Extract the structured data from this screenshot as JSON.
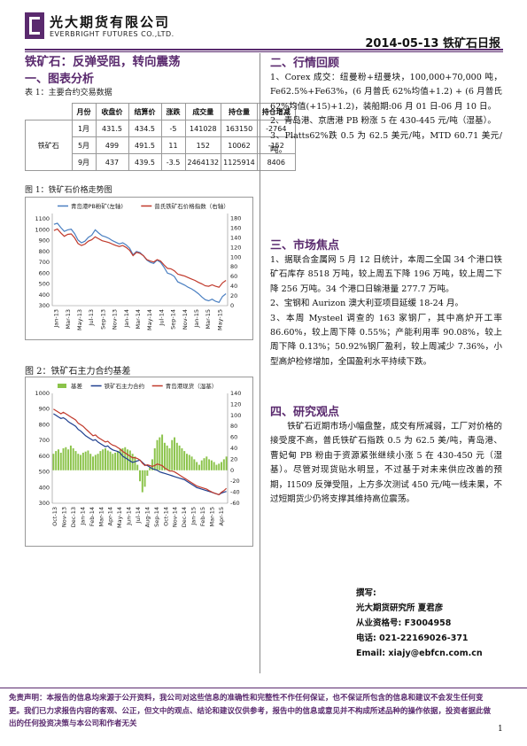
{
  "header": {
    "company_cn": "光大期货有限公司",
    "company_en": "EVERBRIGHT FUTURES CO.,LTD.",
    "report_title": "2014-05-13 铁矿石日报"
  },
  "headline": "铁矿石：反弹受阻，转向震荡",
  "left": {
    "section1_title": "一、图表分析",
    "table1_caption": "表 1：主要合约交易数据",
    "table": {
      "headers": [
        "月份",
        "收盘价",
        "结算价",
        "涨跌",
        "成交量",
        "持仓量",
        "持仓增减"
      ],
      "product": "铁矿石",
      "rows": [
        [
          "1月",
          "431.5",
          "434.5",
          "-5",
          "141028",
          "163150",
          "-2764"
        ],
        [
          "5月",
          "499",
          "491.5",
          "11",
          "152",
          "10062",
          "-152"
        ],
        [
          "9月",
          "437",
          "439.5",
          "-3.5",
          "2464132",
          "1125914",
          "8406"
        ]
      ]
    },
    "fig1_caption": "图 1：铁矿石价格走势图",
    "fig2_caption": "图 2：铁矿石主力合约基差"
  },
  "chart_data": [
    {
      "type": "line",
      "title": "",
      "series": [
        {
          "name": "青岛港PB粉矿(左轴)",
          "axis": "left",
          "color": "#4a7fc1",
          "values": [
            1050,
            1060,
            1020,
            985,
            1000,
            1005,
            965,
            905,
            880,
            895,
            930,
            950,
            1000,
            970,
            945,
            935,
            920,
            900,
            885,
            870,
            880,
            860,
            830,
            770,
            800,
            790,
            760,
            720,
            700,
            690,
            720,
            700,
            655,
            600,
            590,
            570,
            520,
            505,
            490,
            470,
            455,
            435,
            410,
            380,
            355,
            345,
            360,
            340,
            330,
            385,
            410
          ]
        },
        {
          "name": "普氏铁矿石价格指数（右轴）",
          "axis": "right",
          "color": "#c0392b",
          "values": [
            155,
            158,
            150,
            143,
            147,
            148,
            140,
            128,
            124,
            127,
            133,
            136,
            142,
            138,
            134,
            132,
            130,
            127,
            124,
            122,
            124,
            120,
            114,
            103,
            110,
            108,
            103,
            95,
            92,
            90,
            95,
            92,
            84,
            77,
            76,
            72,
            65,
            63,
            61,
            58,
            55,
            52,
            48,
            45,
            41,
            40,
            43,
            40,
            38,
            47,
            52
          ]
        }
      ],
      "x_labels": [
        "Jan-13",
        "Mar-13",
        "May-13",
        "Jul-13",
        "Sep-13",
        "Nov-13",
        "Jan-14",
        "Mar-14",
        "May-14",
        "Jul-14",
        "Sep-14",
        "Nov-14",
        "Jan-15",
        "Mar-15",
        "May-15"
      ],
      "yleft_ticks": [
        300,
        400,
        500,
        600,
        700,
        800,
        900,
        1000,
        1100
      ],
      "yright_ticks": [
        0,
        20,
        40,
        60,
        80,
        100,
        120,
        140,
        160,
        180
      ],
      "yleft_range": [
        300,
        1150
      ],
      "yright_range": [
        0,
        190
      ]
    },
    {
      "type": "bar+line",
      "title": "",
      "series": [
        {
          "name": "基差",
          "kind": "bar",
          "axis": "right",
          "color": "#8bc34a",
          "values": [
            30,
            35,
            38,
            32,
            40,
            42,
            38,
            45,
            40,
            35,
            30,
            28,
            32,
            34,
            36,
            30,
            25,
            28,
            30,
            35,
            38,
            40,
            36,
            34,
            30,
            32,
            35,
            38,
            40,
            42,
            38,
            36,
            30,
            25,
            10,
            -20,
            -40,
            -30,
            -10,
            5,
            20,
            40,
            55,
            60,
            65,
            50,
            45,
            40,
            55,
            60,
            50,
            45,
            40,
            35,
            30,
            28,
            25,
            20,
            15,
            10,
            18,
            22,
            25,
            20,
            18,
            15,
            10,
            12,
            15,
            20,
            25
          ]
        },
        {
          "name": "铁矿石主力合约",
          "kind": "line",
          "axis": "left",
          "color": "#1f3f8f",
          "values": [
            870,
            860,
            850,
            840,
            845,
            835,
            820,
            810,
            800,
            790,
            770,
            760,
            745,
            730,
            720,
            710,
            700,
            705,
            690,
            680,
            670,
            660,
            665,
            650,
            640,
            635,
            630,
            620,
            600,
            590,
            580,
            570,
            560,
            565,
            570,
            575,
            560,
            545,
            540,
            530,
            520,
            515,
            510,
            500,
            495,
            490,
            485,
            480,
            475,
            470,
            465,
            460,
            455,
            450,
            440,
            430,
            420,
            410,
            400,
            395,
            390,
            385,
            380,
            375,
            370,
            365,
            360,
            355,
            365,
            370,
            375
          ]
        },
        {
          "name": "青岛港现货（湿基）",
          "kind": "line",
          "axis": "left",
          "color": "#c0392b",
          "values": [
            900,
            890,
            880,
            870,
            880,
            870,
            860,
            850,
            840,
            830,
            810,
            800,
            790,
            775,
            760,
            745,
            730,
            735,
            720,
            710,
            700,
            690,
            695,
            680,
            670,
            665,
            655,
            645,
            630,
            620,
            610,
            600,
            590,
            590,
            585,
            575,
            555,
            540,
            545,
            540,
            535,
            540,
            550,
            545,
            540,
            525,
            515,
            505,
            505,
            500,
            490,
            480,
            470,
            460,
            450,
            440,
            430,
            420,
            410,
            405,
            400,
            395,
            390,
            380,
            372,
            365,
            360,
            355,
            370,
            380,
            395
          ]
        }
      ],
      "x_labels": [
        "Oct-13",
        "Nov-13",
        "Dec-13",
        "Jan-14",
        "Feb-14",
        "Mar-14",
        "Apr-14",
        "May-14",
        "Jun-14",
        "Jul-14",
        "Aug-14",
        "Sep-14",
        "Oct-14",
        "Nov-14",
        "Dec-14",
        "Jan-15",
        "Feb-15",
        "Mar-15",
        "Apr-15"
      ],
      "yleft_ticks": [
        300,
        400,
        500,
        600,
        700,
        800,
        900,
        1000
      ],
      "yright_ticks": [
        -60,
        -40,
        -20,
        0,
        20,
        40,
        60,
        80,
        100,
        120,
        140
      ],
      "yleft_range": [
        300,
        1000
      ],
      "yright_range": [
        -60,
        140
      ]
    }
  ],
  "right": {
    "section2_title": "二、行情回顾",
    "section2_paras": [
      "1、Corex 成交：纽曼粉+纽曼块，100,000+70,000 吨，Fe62.5%+Fe63%，(6 月普氏 62%均值+1.2) + (6 月普氏 62%均值(+15)+1.2)，装船期:06 月 01 日-06 月 10 日。",
      "2、青岛港、京唐港 PB 粉涨 5 在 430-445 元/吨（湿基）。",
      "3、Platts62%跌 0.5 为 62.5 美元/吨，MTD 60.71 美元/吨。"
    ],
    "section3_title": "三、市场焦点",
    "section3_paras": [
      "1、据联合金属网 5 月 12 日统计，本周二全国 34 个港口铁矿石库存 8518 万吨，较上周五下降 196 万吨，较上周二下降 256 万吨。34 个港口日输港量 277.7 万吨。",
      "2、宝钢和 Aurizon 澳大利亚项目延缓 18-24 月。",
      "3、本周 Mysteel 调查的 163 家钢厂，其中高炉开工率 86.60%，较上周下降 0.55%；产能利用率 90.08%，较上周下降 0.13%；50.92%钢厂盈利，较上周减少 7.36%，小型高炉检修增加，全国盈利水平持续下跌。"
    ],
    "section4_title": "四、研究观点",
    "section4_paras": [
      "铁矿石近期市场小幅盘整，成交有所减弱，工厂对价格的接受度不高，普氏铁矿石指跌 0.5 为 62.5 美/吨，青岛港、曹妃甸 PB 粉由于资源紧张继续小涨 5 在 430-450 元（湿基）。尽管对现货贴水明显，不过基于对未来供应改善的预期，I1509 反弹受阻，上方多次测试 450 元/吨一线未果，不过短期货少仍将支撑其维持高位震荡。"
    ],
    "author": {
      "label": "撰写:",
      "org": "光大期货研究所 夏君彦",
      "cert": "从业资格号: F3004958",
      "phone": "电话: 021-22169026-371",
      "email": "Email: xiajy@ebfcn.com.cn"
    }
  },
  "footer": {
    "disclaimer": "免责声明：本报告的信息均来源于公开资料，我公司对这些信息的准确性和完整性不作任何保证，也不保证所包含的信息和建议不会发生任何变更。我们已力求报告内容的客观、公正，但文中的观点、结论和建议仅供参考，报告中的信息或意见并不构成所述品种的操作依据，投资者据此做出的任何投资决策与本公司和作者无关",
    "page": "1"
  }
}
